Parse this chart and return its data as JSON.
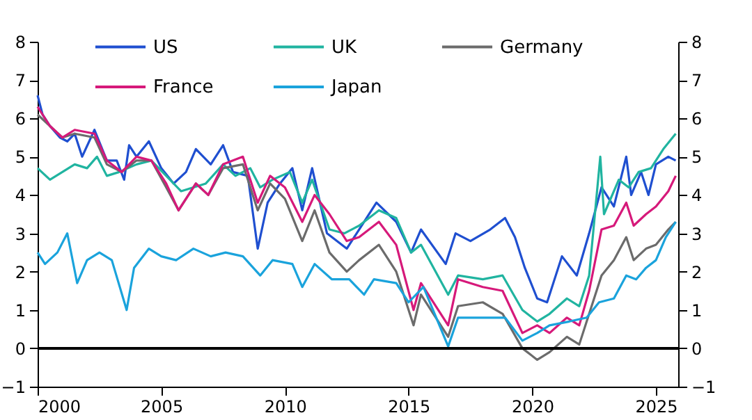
{
  "chart_data": {
    "type": "line",
    "xlim": [
      2000,
      2025.9
    ],
    "xticks": [
      2000,
      2005,
      2010,
      2015,
      2020,
      2025
    ],
    "ylim": [
      -1,
      8
    ],
    "yticks": [
      -1,
      0,
      1,
      2,
      3,
      4,
      5,
      6,
      7,
      8
    ],
    "y2lim": [
      -1,
      8
    ],
    "y2ticks": [
      -1,
      0,
      1,
      2,
      3,
      4,
      5,
      6,
      7,
      8
    ],
    "grid": false,
    "legend": "top",
    "marker": "none",
    "line_style": "solid",
    "ref_lines": [
      {
        "axis": "y",
        "value": 0,
        "color": "#000000"
      }
    ],
    "series": [
      {
        "name": "US",
        "color": "#1f4fd0",
        "x": [
          2000.0,
          2000.2,
          2000.5,
          2000.9,
          2001.2,
          2001.5,
          2001.8,
          2002.3,
          2002.8,
          2003.2,
          2003.5,
          2003.7,
          2004.0,
          2004.5,
          2005.0,
          2005.5,
          2006.0,
          2006.4,
          2007.0,
          2007.5,
          2007.9,
          2008.5,
          2008.9,
          2009.3,
          2009.8,
          2010.3,
          2010.7,
          2011.1,
          2011.7,
          2012.5,
          2013.0,
          2013.7,
          2014.5,
          2015.1,
          2015.5,
          2016.5,
          2016.9,
          2017.5,
          2018.3,
          2018.9,
          2019.3,
          2019.7,
          2020.2,
          2020.6,
          2021.2,
          2021.8,
          2022.3,
          2022.8,
          2023.3,
          2023.8,
          2024.0,
          2024.4,
          2024.7,
          2025.0,
          2025.5,
          2025.8
        ],
        "values": [
          6.6,
          6.1,
          5.8,
          5.5,
          5.4,
          5.6,
          5.0,
          5.7,
          4.9,
          4.9,
          4.4,
          5.3,
          5.0,
          5.4,
          4.7,
          4.3,
          4.6,
          5.2,
          4.8,
          5.3,
          4.6,
          4.5,
          2.6,
          3.8,
          4.3,
          4.7,
          3.6,
          4.7,
          3.0,
          2.6,
          3.1,
          3.8,
          3.3,
          2.5,
          3.1,
          2.2,
          3.0,
          2.8,
          3.1,
          3.4,
          2.9,
          2.1,
          1.3,
          1.2,
          2.4,
          1.9,
          3.0,
          4.2,
          3.7,
          5.0,
          4.0,
          4.6,
          4.0,
          4.8,
          5.0,
          4.9
        ]
      },
      {
        "name": "UK",
        "color": "#20b4a0",
        "x": [
          2000.0,
          2000.5,
          2001.0,
          2001.5,
          2002.0,
          2002.4,
          2002.8,
          2003.3,
          2004.0,
          2004.6,
          2005.2,
          2005.8,
          2006.3,
          2006.8,
          2007.5,
          2008.0,
          2008.6,
          2009.0,
          2009.5,
          2010.2,
          2010.7,
          2011.1,
          2011.8,
          2012.4,
          2013.0,
          2013.8,
          2014.5,
          2015.1,
          2015.5,
          2016.6,
          2017.0,
          2018.0,
          2018.8,
          2019.6,
          2020.2,
          2020.7,
          2021.4,
          2021.9,
          2022.3,
          2022.75,
          2022.9,
          2023.5,
          2023.9,
          2024.3,
          2024.8,
          2025.3,
          2025.8
        ],
        "values": [
          4.7,
          4.4,
          4.6,
          4.8,
          4.7,
          5.0,
          4.5,
          4.6,
          4.8,
          4.9,
          4.5,
          4.1,
          4.2,
          4.3,
          4.8,
          4.5,
          4.7,
          4.2,
          4.4,
          4.6,
          3.8,
          4.4,
          3.1,
          3.0,
          3.2,
          3.6,
          3.4,
          2.5,
          2.7,
          1.4,
          1.9,
          1.8,
          1.9,
          1.0,
          0.7,
          0.9,
          1.3,
          1.1,
          1.9,
          5.0,
          3.5,
          4.4,
          4.2,
          4.6,
          4.7,
          5.2,
          5.6
        ]
      },
      {
        "name": "Germany",
        "color": "#6b6b6b",
        "x": [
          2000.0,
          2000.5,
          2001.0,
          2001.5,
          2002.3,
          2002.8,
          2003.4,
          2004.0,
          2004.6,
          2005.2,
          2005.7,
          2006.4,
          2006.9,
          2007.5,
          2008.3,
          2008.9,
          2009.4,
          2010.0,
          2010.7,
          2011.2,
          2011.8,
          2012.5,
          2013.0,
          2013.8,
          2014.5,
          2015.2,
          2015.5,
          2016.6,
          2017.0,
          2018.0,
          2018.8,
          2019.6,
          2020.2,
          2020.7,
          2021.4,
          2021.9,
          2022.3,
          2022.8,
          2023.3,
          2023.8,
          2024.1,
          2024.6,
          2025.0,
          2025.5,
          2025.8
        ],
        "values": [
          6.1,
          5.8,
          5.5,
          5.6,
          5.5,
          4.8,
          4.6,
          4.9,
          4.9,
          4.2,
          3.6,
          4.3,
          4.0,
          4.7,
          4.8,
          3.6,
          4.3,
          3.9,
          2.8,
          3.6,
          2.5,
          2.0,
          2.3,
          2.7,
          2.0,
          0.6,
          1.4,
          0.3,
          1.1,
          1.2,
          0.9,
          0.0,
          -0.3,
          -0.1,
          0.3,
          0.1,
          0.9,
          1.9,
          2.3,
          2.9,
          2.3,
          2.6,
          2.7,
          3.1,
          3.3
        ]
      },
      {
        "name": "France",
        "color": "#d6197a",
        "x": [
          2000.0,
          2000.5,
          2001.0,
          2001.5,
          2002.3,
          2002.8,
          2003.4,
          2004.0,
          2004.6,
          2005.2,
          2005.7,
          2006.4,
          2006.9,
          2007.5,
          2008.3,
          2008.9,
          2009.4,
          2010.0,
          2010.7,
          2011.2,
          2011.8,
          2012.5,
          2013.0,
          2013.8,
          2014.5,
          2015.2,
          2015.5,
          2016.6,
          2017.0,
          2018.0,
          2018.8,
          2019.6,
          2020.2,
          2020.7,
          2021.4,
          2021.9,
          2022.3,
          2022.8,
          2023.3,
          2023.8,
          2024.1,
          2024.6,
          2025.0,
          2025.5,
          2025.8
        ],
        "values": [
          6.3,
          5.8,
          5.5,
          5.7,
          5.6,
          4.9,
          4.6,
          5.0,
          4.9,
          4.3,
          3.6,
          4.3,
          4.0,
          4.8,
          5.0,
          3.8,
          4.5,
          4.2,
          3.3,
          4.0,
          3.5,
          2.8,
          2.9,
          3.3,
          2.7,
          1.0,
          1.7,
          0.6,
          1.8,
          1.6,
          1.5,
          0.4,
          0.6,
          0.4,
          0.8,
          0.6,
          1.5,
          3.1,
          3.2,
          3.8,
          3.2,
          3.5,
          3.7,
          4.1,
          4.5
        ]
      },
      {
        "name": "Japan",
        "color": "#1aa3dc",
        "x": [
          2000.0,
          2000.3,
          2000.8,
          2001.2,
          2001.6,
          2002.0,
          2002.5,
          2003.0,
          2003.6,
          2003.9,
          2004.5,
          2005.0,
          2005.6,
          2006.3,
          2007.0,
          2007.6,
          2008.3,
          2009.0,
          2009.5,
          2010.3,
          2010.7,
          2011.2,
          2011.9,
          2012.6,
          2013.2,
          2013.6,
          2014.5,
          2015.0,
          2015.6,
          2016.6,
          2017.0,
          2018.0,
          2018.9,
          2019.6,
          2020.2,
          2020.7,
          2021.5,
          2022.2,
          2022.7,
          2023.3,
          2023.8,
          2024.2,
          2024.6,
          2025.0,
          2025.4,
          2025.8
        ],
        "values": [
          2.5,
          2.2,
          2.5,
          3.0,
          1.7,
          2.3,
          2.5,
          2.3,
          1.0,
          2.1,
          2.6,
          2.4,
          2.3,
          2.6,
          2.4,
          2.5,
          2.4,
          1.9,
          2.3,
          2.2,
          1.6,
          2.2,
          1.8,
          1.8,
          1.4,
          1.8,
          1.7,
          1.2,
          1.6,
          0.05,
          0.8,
          0.8,
          0.8,
          0.2,
          0.4,
          0.6,
          0.7,
          0.8,
          1.2,
          1.3,
          1.9,
          1.8,
          2.1,
          2.3,
          2.9,
          3.3
        ]
      }
    ]
  }
}
